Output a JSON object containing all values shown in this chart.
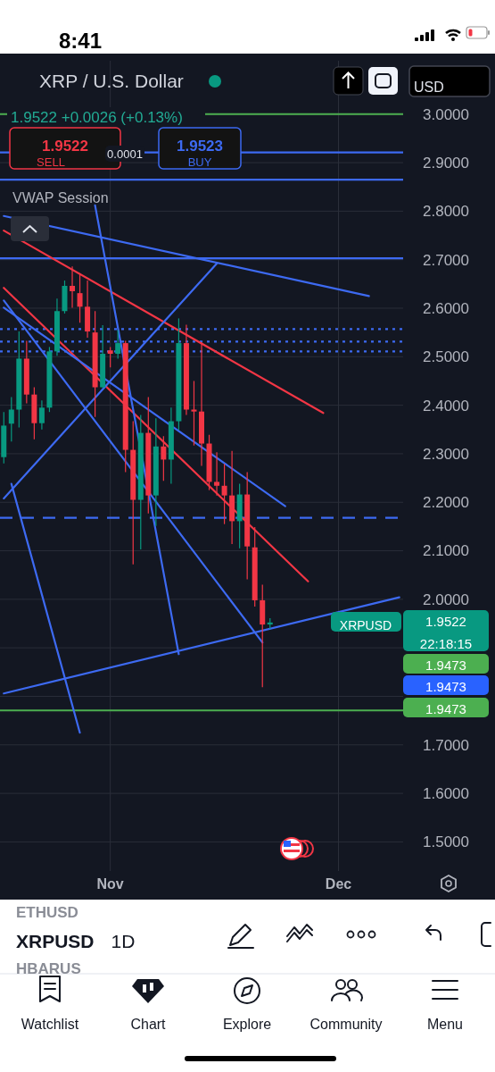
{
  "chart_data": {
    "type": "candlestick",
    "title": "XRP / U.S. Dollar",
    "subtitle": "1.9522 +0.0026 (+0.13%)",
    "x": [
      "--10-18",
      "--10-19",
      "--10-20",
      "--10-21",
      "--10-22",
      "--10-23",
      "--10-24",
      "--10-25",
      "--10-26",
      "--10-27",
      "--10-28",
      "--10-29",
      "--10-30",
      "--10-31",
      "--11-01",
      "--11-02",
      "--11-03",
      "--11-04",
      "--11-05",
      "--11-06",
      "--11-07",
      "--11-08",
      "--11-09",
      "--11-10",
      "--11-11",
      "--11-12",
      "--11-13",
      "--11-14",
      "--11-15",
      "--11-16",
      "--11-17",
      "--11-18",
      "--11-19",
      "--11-20",
      "--11-21",
      "--11-22"
    ],
    "ohlc": [
      [
        2.293,
        2.386,
        2.28,
        2.358
      ],
      [
        2.362,
        2.417,
        2.325,
        2.391
      ],
      [
        2.391,
        2.552,
        2.354,
        2.496
      ],
      [
        2.496,
        2.533,
        2.404,
        2.422
      ],
      [
        2.422,
        2.437,
        2.33,
        2.363
      ],
      [
        2.363,
        2.41,
        2.35,
        2.395
      ],
      [
        2.395,
        2.52,
        2.386,
        2.511
      ],
      [
        2.511,
        2.62,
        2.502,
        2.594
      ],
      [
        2.594,
        2.657,
        2.589,
        2.646
      ],
      [
        2.646,
        2.686,
        2.601,
        2.635
      ],
      [
        2.631,
        2.672,
        2.57,
        2.603
      ],
      [
        2.603,
        2.657,
        2.539,
        2.552
      ],
      [
        2.55,
        2.594,
        2.376,
        2.437
      ],
      [
        2.437,
        2.565,
        2.435,
        2.506
      ],
      [
        2.513,
        2.52,
        2.478,
        2.506
      ],
      [
        2.506,
        2.555,
        2.496,
        2.528
      ],
      [
        2.528,
        2.533,
        2.262,
        2.308
      ],
      [
        2.308,
        2.367,
        2.072,
        2.205
      ],
      [
        2.205,
        2.38,
        2.103,
        2.343
      ],
      [
        2.343,
        2.417,
        2.177,
        2.214
      ],
      [
        2.214,
        2.373,
        2.151,
        2.315
      ],
      [
        2.315,
        2.336,
        2.244,
        2.288
      ],
      [
        2.288,
        2.395,
        2.238,
        2.367
      ],
      [
        2.367,
        2.579,
        2.349,
        2.528
      ],
      [
        2.528,
        2.566,
        2.38,
        2.391
      ],
      [
        2.391,
        2.45,
        2.317,
        2.387
      ],
      [
        2.387,
        2.53,
        2.275,
        2.321
      ],
      [
        2.321,
        2.339,
        2.225,
        2.242
      ],
      [
        2.242,
        2.303,
        2.214,
        2.234
      ],
      [
        2.234,
        2.279,
        2.155,
        2.214
      ],
      [
        2.214,
        2.306,
        2.114,
        2.161
      ],
      [
        2.161,
        2.238,
        2.105,
        2.216
      ],
      [
        2.216,
        2.262,
        2.041,
        2.109
      ],
      [
        2.107,
        2.149,
        1.985,
        1.998
      ],
      [
        1.998,
        2.03,
        1.819,
        1.948
      ],
      [
        1.948,
        1.961,
        1.939,
        1.9522
      ]
    ],
    "series": [
      {
        "type": "line",
        "color": "#f23645",
        "x": [
          "--10-18",
          "--11-29"
        ],
        "values": [
          2.76,
          2.384
        ]
      },
      {
        "type": "line",
        "color": "#f23645",
        "x": [
          "--10-18",
          "--11-27"
        ],
        "values": [
          2.642,
          2.037
        ]
      },
      {
        "type": "line",
        "color": "#3d6af2",
        "x": [
          "--10-18",
          "--12-09"
        ],
        "values": [
          1.806,
          2.004
        ]
      },
      {
        "type": "line",
        "color": "#3d6af2",
        "x": [
          "--10-18",
          "--12-05"
        ],
        "values": [
          2.79,
          2.625
        ]
      },
      {
        "type": "line",
        "color": "#3d6af2",
        "x": [
          "--10-18",
          "--11-24"
        ],
        "values": [
          2.601,
          2.192
        ]
      },
      {
        "type": "line",
        "color": "#3d6af2",
        "x": [
          "--10-18",
          "--11-21"
        ],
        "values": [
          2.616,
          1.911
        ]
      },
      {
        "type": "line",
        "color": "#3d6af2",
        "x": [
          "--10-19",
          "--10-28"
        ],
        "values": [
          2.238,
          1.725
        ]
      },
      {
        "type": "line",
        "color": "#3d6af2",
        "x": [
          "--10-30",
          "--11-10"
        ],
        "values": [
          2.812,
          1.887
        ]
      },
      {
        "type": "line",
        "color": "#3d6af2",
        "x": [
          "--10-18",
          "--11-15"
        ],
        "values": [
          2.208,
          2.692
        ]
      }
    ],
    "xlim": [
      "--10-17T12:00",
      "--12-09T12:00"
    ],
    "xticks": [
      {
        "value": "--11-01",
        "label": "Nov"
      },
      {
        "value": "--12-01",
        "label": "Dec"
      }
    ],
    "ylim": [
      1.44,
      3.11
    ],
    "yticks": [
      {
        "value": 1.5,
        "label": "1.5000"
      },
      {
        "value": 1.6,
        "label": "1.6000"
      },
      {
        "value": 1.7,
        "label": "1.7000"
      },
      {
        "value": 1.8,
        "label": null
      },
      {
        "value": 1.9,
        "label": null
      },
      {
        "value": 2.0,
        "label": "2.0000"
      },
      {
        "value": 2.1,
        "label": "2.1000"
      },
      {
        "value": 2.2,
        "label": "2.2000"
      },
      {
        "value": 2.3,
        "label": "2.3000"
      },
      {
        "value": 2.4,
        "label": "2.4000"
      },
      {
        "value": 2.5,
        "label": "2.5000"
      },
      {
        "value": 2.6,
        "label": "2.6000"
      },
      {
        "value": 2.7,
        "label": "2.7000"
      },
      {
        "value": 2.8,
        "label": "2.8000"
      },
      {
        "value": 2.9,
        "label": "2.9000"
      },
      {
        "value": 3.0,
        "label": "3.0000"
      }
    ],
    "grid": true,
    "ref_lines": [
      {
        "axis": "y",
        "value": 3.0,
        "color": "#4caf50",
        "line_style": "solid"
      },
      {
        "axis": "y",
        "value": 1.771,
        "color": "#4caf50",
        "line_style": "solid"
      },
      {
        "axis": "y",
        "value": 2.921,
        "color": "#3d6af2",
        "line_style": "solid"
      },
      {
        "axis": "y",
        "value": 2.865,
        "color": "#3d6af2",
        "line_style": "solid"
      },
      {
        "axis": "y",
        "value": 2.703,
        "color": "#3d6af2",
        "line_style": "solid"
      },
      {
        "axis": "y",
        "value": 2.168,
        "color": "#3d6af2",
        "line_style": "dashed"
      },
      {
        "axis": "y",
        "value": 2.557,
        "color": "#3d6af2",
        "line_style": "dotted"
      },
      {
        "axis": "y",
        "value": 2.531,
        "color": "#3d6af2",
        "line_style": "dotted"
      },
      {
        "axis": "y",
        "value": 2.511,
        "color": "#3d6af2",
        "line_style": "dotted"
      }
    ],
    "annotations": [
      "8:41",
      "1.9522",
      "SELL",
      "0.0001",
      "1.9523",
      "BUY",
      "VWAP Session",
      "USD",
      "XRPUSD",
      "1.9522",
      "22:18:15",
      "1.9473",
      "1.9473",
      "1.9473",
      "ETHUSD",
      "XRPUSD",
      "1D",
      "HBARUS",
      "Watchlist",
      "Chart",
      "Explore",
      "Community",
      "Menu"
    ]
  }
}
